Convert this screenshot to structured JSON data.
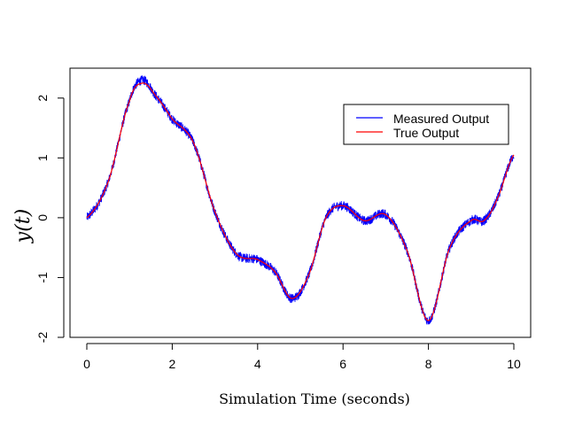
{
  "chart_data": {
    "type": "line",
    "title": "",
    "xlabel": "Simulation Time (seconds)",
    "ylabel": "y(t)",
    "xlim": [
      0,
      10
    ],
    "ylim": [
      -2,
      2.5
    ],
    "x_ticks": [
      "0",
      "2",
      "4",
      "6",
      "8",
      "10"
    ],
    "y_ticks": [
      "-2",
      "-1",
      "0",
      "1",
      "2"
    ],
    "grid": false,
    "legend_position": "top-right",
    "series": [
      {
        "name": "Measured Output",
        "color": "#0000ff",
        "noise_amplitude": 0.08,
        "x": [
          0,
          0.5,
          1.0,
          1.3,
          1.6,
          2.0,
          2.5,
          3.0,
          3.5,
          4.0,
          4.4,
          4.8,
          5.2,
          5.6,
          6.0,
          6.5,
          7.0,
          7.5,
          8.0,
          8.5,
          9.0,
          9.3,
          9.6,
          10.0
        ],
        "values": [
          0.0,
          0.6,
          1.95,
          2.3,
          2.05,
          1.65,
          1.25,
          0.1,
          -0.6,
          -0.7,
          -0.9,
          -1.35,
          -0.95,
          0.0,
          0.2,
          -0.05,
          0.05,
          -0.55,
          -1.72,
          -0.5,
          -0.05,
          -0.05,
          0.3,
          1.05
        ]
      },
      {
        "name": "True Output",
        "color": "#ff0000",
        "x": [
          0,
          0.5,
          1.0,
          1.3,
          1.6,
          2.0,
          2.5,
          3.0,
          3.5,
          4.0,
          4.4,
          4.8,
          5.2,
          5.6,
          6.0,
          6.5,
          7.0,
          7.5,
          8.0,
          8.5,
          9.0,
          9.3,
          9.6,
          10.0
        ],
        "values": [
          0.0,
          0.6,
          1.95,
          2.25,
          2.05,
          1.65,
          1.25,
          0.1,
          -0.6,
          -0.7,
          -0.9,
          -1.35,
          -0.95,
          0.0,
          0.2,
          -0.05,
          0.05,
          -0.55,
          -1.72,
          -0.5,
          -0.05,
          -0.05,
          0.3,
          1.05
        ]
      }
    ]
  }
}
